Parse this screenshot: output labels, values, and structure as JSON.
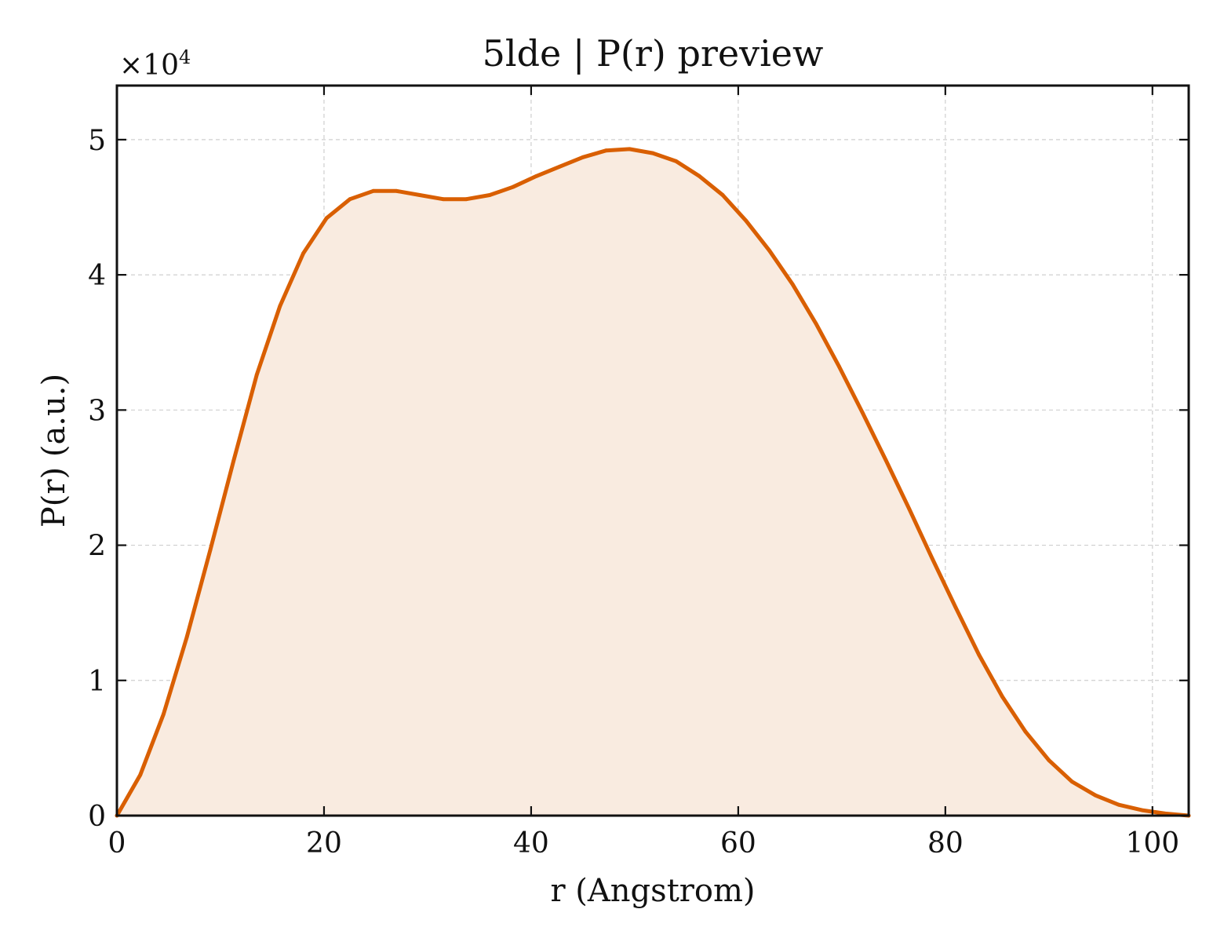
{
  "chart_data": {
    "type": "area",
    "title": "5lde | P(r) preview",
    "xlabel": "r (Angstrom)",
    "ylabel": "P(r) (a.u.)",
    "y_multiplier_base": "×10",
    "y_multiplier_exp": "4",
    "xlim": [
      0,
      103.5
    ],
    "ylim": [
      0,
      54000
    ],
    "xticks": [
      0,
      20,
      40,
      60,
      80,
      100
    ],
    "yticks": [
      0,
      10000,
      20000,
      30000,
      40000,
      50000
    ],
    "xtick_labels": [
      "0",
      "20",
      "40",
      "60",
      "80",
      "100"
    ],
    "ytick_labels": [
      "0",
      "1",
      "2",
      "3",
      "4",
      "5"
    ],
    "grid": true,
    "line_color": "#d95f02",
    "fill_color": "#f9ebe0",
    "series": [
      {
        "x": [
          0,
          2.25,
          4.5,
          6.75,
          9.0,
          11.25,
          13.5,
          15.75,
          18.0,
          20.25,
          22.5,
          24.75,
          27.0,
          29.25,
          31.5,
          33.75,
          36.0,
          38.25,
          40.5,
          42.75,
          45.0,
          47.25,
          49.5,
          51.75,
          54.0,
          56.25,
          58.5,
          60.75,
          63.0,
          65.25,
          67.5,
          69.75,
          72.0,
          74.25,
          76.5,
          78.75,
          81.0,
          83.25,
          85.5,
          87.75,
          90.0,
          92.25,
          94.5,
          96.75,
          99.0,
          101.25,
          103.5
        ],
        "y": [
          0,
          3000,
          7500,
          13200,
          19600,
          26200,
          32600,
          37700,
          41600,
          44200,
          45600,
          46200,
          46200,
          45900,
          45600,
          45600,
          45900,
          46500,
          47300,
          48000,
          48700,
          49200,
          49300,
          49000,
          48400,
          47300,
          45900,
          44000,
          41800,
          39300,
          36400,
          33200,
          29800,
          26300,
          22700,
          19000,
          15400,
          11900,
          8800,
          6200,
          4100,
          2500,
          1500,
          800,
          400,
          150,
          0
        ]
      }
    ]
  }
}
